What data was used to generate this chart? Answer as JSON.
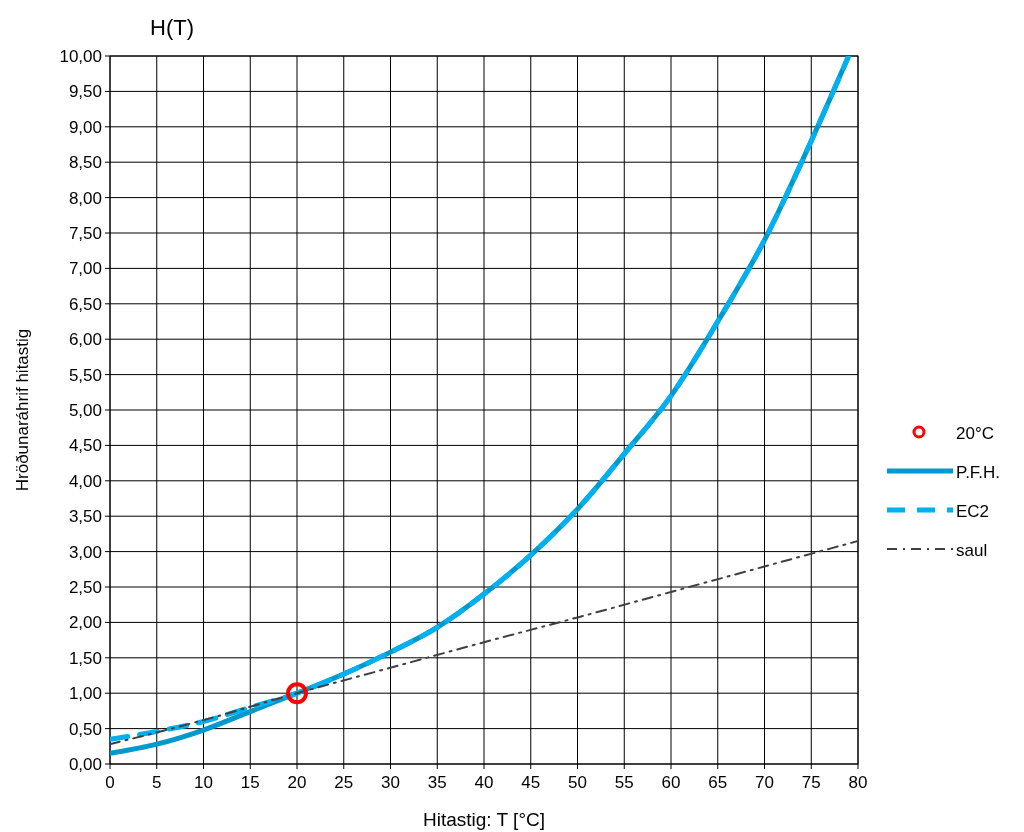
{
  "chart_data": {
    "type": "line",
    "title": "H(T)",
    "xlabel": "Hitastig: T  [°C]",
    "ylabel": "Hröðunaráhrif hitastig",
    "xlim": [
      0,
      80
    ],
    "xticks": [
      0,
      5,
      10,
      15,
      20,
      25,
      30,
      35,
      40,
      45,
      50,
      55,
      60,
      65,
      70,
      75,
      80
    ],
    "ylim": [
      0,
      10
    ],
    "yticks": [
      {
        "value": 0,
        "label": "0,00"
      },
      {
        "value": 0.5,
        "label": "0,50"
      },
      {
        "value": 1,
        "label": "1,00"
      },
      {
        "value": 1.5,
        "label": "1,50"
      },
      {
        "value": 2,
        "label": "2,00"
      },
      {
        "value": 2.5,
        "label": "2,50"
      },
      {
        "value": 3,
        "label": "3,00"
      },
      {
        "value": 3.5,
        "label": "3,50"
      },
      {
        "value": 4,
        "label": "4,00"
      },
      {
        "value": 4.5,
        "label": "4,50"
      },
      {
        "value": 5,
        "label": "5,00"
      },
      {
        "value": 5.5,
        "label": "5,50"
      },
      {
        "value": 6,
        "label": "6,00"
      },
      {
        "value": 6.5,
        "label": "6,50"
      },
      {
        "value": 7,
        "label": "7,00"
      },
      {
        "value": 7.5,
        "label": "7,50"
      },
      {
        "value": 8,
        "label": "8,00"
      },
      {
        "value": 8.5,
        "label": "8,50"
      },
      {
        "value": 9,
        "label": "9,00"
      },
      {
        "value": 9.5,
        "label": "9,50"
      },
      {
        "value": 10,
        "label": "10,00"
      }
    ],
    "grid": true,
    "legend": "right",
    "series": [
      {
        "name": "20°C",
        "type": "scatter",
        "marker": "circle",
        "color": "#ff0000",
        "x": [
          20
        ],
        "values": [
          1
        ]
      },
      {
        "name": "P.F.H.",
        "line_style": "solid",
        "color": "#0099cc",
        "x": [
          0,
          5,
          10,
          15,
          20,
          25,
          30,
          35,
          40,
          45,
          50,
          55,
          60,
          65,
          70,
          75,
          79
        ],
        "values": [
          0.15,
          0.28,
          0.48,
          0.74,
          1.0,
          1.27,
          1.58,
          1.93,
          2.4,
          2.95,
          3.6,
          4.38,
          5.2,
          6.25,
          7.4,
          8.8,
          10.0
        ]
      },
      {
        "name": "EC2",
        "line_style": "dashed",
        "color": "#00b0f0",
        "x": [
          0,
          5,
          10,
          15,
          20,
          25,
          30,
          35,
          40,
          45,
          50,
          55,
          60,
          65,
          70,
          75,
          79
        ],
        "values": [
          0.35,
          0.46,
          0.6,
          0.8,
          1.0,
          1.27,
          1.58,
          1.93,
          2.4,
          2.95,
          3.6,
          4.38,
          5.2,
          6.25,
          7.4,
          8.8,
          10.0
        ]
      },
      {
        "name": "saul",
        "line_style": "dashdot",
        "color": "#404040",
        "x": [
          0,
          10,
          20,
          30,
          40,
          50,
          60,
          70,
          80
        ],
        "values": [
          0.28,
          0.62,
          1.0,
          1.36,
          1.72,
          2.07,
          2.43,
          2.79,
          3.15
        ]
      }
    ]
  }
}
